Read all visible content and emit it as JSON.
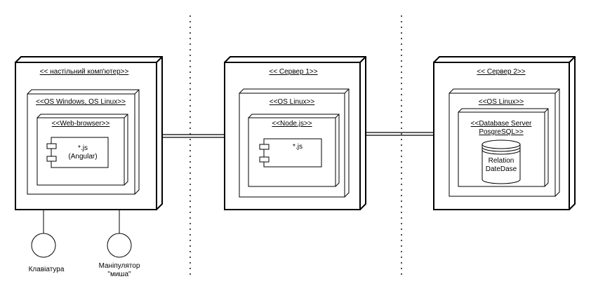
{
  "diagram": {
    "type": "deployment",
    "nodes": {
      "desktop": {
        "label": "<< настільний комп'ютер>>",
        "os_label": "<<OS Windows, OS Linux>>",
        "browser_label": "<<Web-browser>>",
        "component_line1": "*.js",
        "component_line2": "(Angular)"
      },
      "server1": {
        "label": "<< Сервер 1>>",
        "os_label": "<<OS Linux>>",
        "runtime_label": "<<Node.js>>",
        "component_line1": "*.js"
      },
      "server2": {
        "label": "<< Сервер 2>>",
        "os_label": "<<OS Linux>>",
        "db_server_line1": "<<Database Server",
        "db_server_line2": "PosgreSQL>>",
        "database_line1": "Relation",
        "database_line2": "DateDase"
      }
    },
    "devices": {
      "keyboard": {
        "label": "Клавіатура"
      },
      "mouse": {
        "label_line1": "Маніпулятор",
        "label_line2": "\"миша\""
      }
    },
    "colors": {
      "stroke": "#000000",
      "background": "#ffffff"
    }
  }
}
